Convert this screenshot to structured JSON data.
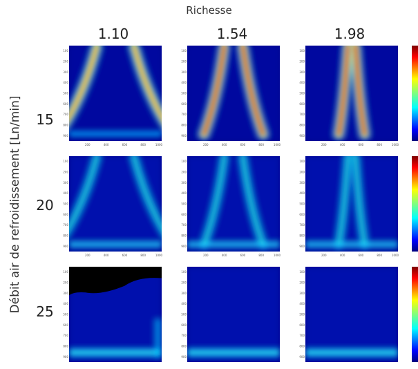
{
  "figure": {
    "top_title": "Richesse",
    "y_title": "Débit air de refroidissement [Ln/min]",
    "columns": [
      "1.10",
      "1.54",
      "1.98"
    ],
    "rows": [
      "15",
      "20",
      "25"
    ],
    "y_ticks": [
      "100",
      "200",
      "300",
      "400",
      "500",
      "600",
      "700",
      "800",
      "900"
    ],
    "x_ticks": [
      "200",
      "400",
      "600",
      "800",
      "1000"
    ],
    "colormap": "jet",
    "colors": {
      "background": "#00008f",
      "hot": "#cc1100",
      "dark": "#000000"
    }
  }
}
